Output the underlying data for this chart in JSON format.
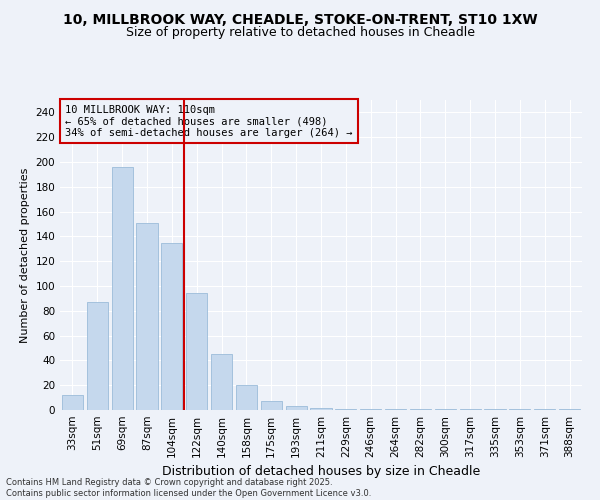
{
  "title1": "10, MILLBROOK WAY, CHEADLE, STOKE-ON-TRENT, ST10 1XW",
  "title2": "Size of property relative to detached houses in Cheadle",
  "xlabel": "Distribution of detached houses by size in Cheadle",
  "ylabel": "Number of detached properties",
  "categories": [
    "33sqm",
    "51sqm",
    "69sqm",
    "87sqm",
    "104sqm",
    "122sqm",
    "140sqm",
    "158sqm",
    "175sqm",
    "193sqm",
    "211sqm",
    "229sqm",
    "246sqm",
    "264sqm",
    "282sqm",
    "300sqm",
    "317sqm",
    "335sqm",
    "353sqm",
    "371sqm",
    "388sqm"
  ],
  "values": [
    12,
    87,
    196,
    151,
    135,
    94,
    45,
    20,
    7,
    3,
    2,
    1,
    1,
    1,
    1,
    1,
    1,
    1,
    1,
    1,
    1
  ],
  "bar_color": "#c5d8ed",
  "bar_edge_color": "#9bbcda",
  "vline_color": "#cc0000",
  "annotation_title": "10 MILLBROOK WAY: 110sqm",
  "annotation_line1": "← 65% of detached houses are smaller (498)",
  "annotation_line2": "34% of semi-detached houses are larger (264) →",
  "ylim": [
    0,
    250
  ],
  "yticks": [
    0,
    20,
    40,
    60,
    80,
    100,
    120,
    140,
    160,
    180,
    200,
    220,
    240
  ],
  "footer1": "Contains HM Land Registry data © Crown copyright and database right 2025.",
  "footer2": "Contains public sector information licensed under the Open Government Licence v3.0.",
  "bg_color": "#eef2f9",
  "grid_color": "#ffffff",
  "title_fontsize": 10,
  "subtitle_fontsize": 9,
  "ylabel_fontsize": 8,
  "xlabel_fontsize": 9,
  "tick_fontsize": 7.5,
  "annot_fontsize": 7.5,
  "footer_fontsize": 6
}
